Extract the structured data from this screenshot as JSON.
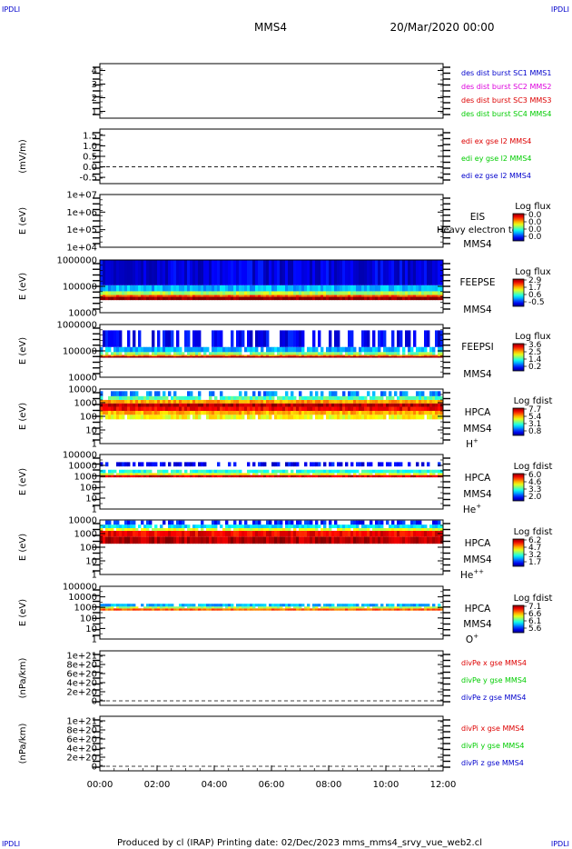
{
  "corner_labels": [
    "IPDLI",
    "IPDLI",
    "IPDLI",
    "IPDLI"
  ],
  "header": {
    "spacecraft": "MMS4",
    "datetime": "20/Mar/2020 00:00"
  },
  "footer": {
    "text": "Produced by cl (IRAP)   Printing date: 02/Dec/2023   mms_mms4_srvy_vue_web2.cl"
  },
  "colors": {
    "red": "#dd0000",
    "green": "#00cc00",
    "blue": "#0000cc",
    "magenta": "#dd00dd",
    "black": "#000000"
  },
  "chart_data": {
    "type": "heatmap",
    "x_ticks": [
      "00:00",
      "02:00",
      "04:00",
      "06:00",
      "08:00",
      "10:00",
      "12:00"
    ],
    "xlim": [
      0,
      12
    ],
    "panels": [
      {
        "id": "dist",
        "kind": "line",
        "ylabel": "",
        "ylim": [
          0.5,
          4.5
        ],
        "ticks": [
          {
            "v": 1,
            "t": "1"
          },
          {
            "v": 2,
            "t": "2"
          },
          {
            "v": 3,
            "t": "3"
          },
          {
            "v": 4,
            "t": "4"
          }
        ],
        "legend": [
          {
            "text": "des dist burst SC1 MMS1",
            "color": "#0000cc"
          },
          {
            "text": "des dist burst SC2 MMS2",
            "color": "#dd00dd"
          },
          {
            "text": "des dist burst SC3 MMS3",
            "color": "#dd0000"
          },
          {
            "text": "des dist burst SC4 MMS4",
            "color": "#00cc00"
          }
        ]
      },
      {
        "id": "edi",
        "kind": "line",
        "ylabel": "(mV/m)",
        "ylim": [
          -0.8,
          1.8
        ],
        "dashed_zero": true,
        "ticks": [
          {
            "v": 1.5,
            "t": "1.5"
          },
          {
            "v": 1.0,
            "t": "1.0"
          },
          {
            "v": 0.5,
            "t": "0.5"
          },
          {
            "v": 0.0,
            "t": "0.0"
          },
          {
            "v": -0.5,
            "t": "-0.5"
          }
        ],
        "legend": [
          {
            "text": "edi ex gse l2 MMS4",
            "color": "#dd0000"
          },
          {
            "text": "edi ey gse l2 MMS4",
            "color": "#00cc00"
          },
          {
            "text": "edi ez gse l2 MMS4",
            "color": "#0000cc"
          }
        ]
      },
      {
        "id": "eis",
        "kind": "spectrogram",
        "ylabel": "E (eV)",
        "log": true,
        "ylim": [
          10000,
          10000000
        ],
        "ticks": [
          {
            "v": 10000000,
            "t": "1e+07"
          },
          {
            "v": 1000000,
            "t": "1e+06"
          },
          {
            "v": 100000,
            "t": "1e+05"
          },
          {
            "v": 10000,
            "t": "1e+04"
          }
        ],
        "labels": [
          "EIS",
          "MMS4"
        ],
        "overlay": "Heavy electron to",
        "cb_title": "Log flux",
        "cb_values": [
          "0.0",
          "0.0",
          "0.0",
          "0.0"
        ],
        "bands": []
      },
      {
        "id": "feepse",
        "kind": "spectrogram",
        "ylabel": "E (eV)",
        "log": true,
        "ylim": [
          10000,
          1000000
        ],
        "ticks": [
          {
            "v": 1000000,
            "t": "1000000"
          },
          {
            "v": 100000,
            "t": "100000"
          },
          {
            "v": 10000,
            "t": "10000"
          }
        ],
        "labels": [
          "FEEPSE",
          "MMS4"
        ],
        "cb_title": "Log flux",
        "cb_values": [
          "2.9",
          "1.7",
          "0.6",
          "-0.5"
        ],
        "bands": [
          {
            "from": 30000,
            "to": 40000,
            "level": 1.0
          },
          {
            "from": 40000,
            "to": 47000,
            "level": 0.8
          },
          {
            "from": 47000,
            "to": 65000,
            "level": 0.55
          },
          {
            "from": 65000,
            "to": 110000,
            "level": 0.3
          },
          {
            "from": 110000,
            "to": 1000000,
            "level": 0.1
          }
        ],
        "sparse": false
      },
      {
        "id": "feepsi",
        "kind": "spectrogram",
        "ylabel": "E (eV)",
        "log": true,
        "ylim": [
          10000,
          1000000
        ],
        "ticks": [
          {
            "v": 1000000,
            "t": "1000000"
          },
          {
            "v": 100000,
            "t": "100000"
          },
          {
            "v": 10000,
            "t": "10000"
          }
        ],
        "labels": [
          "FEEPSI",
          "MMS4"
        ],
        "cb_title": "Log flux",
        "cb_values": [
          "3.6",
          "2.5",
          "1.4",
          "0.2"
        ],
        "bands": [
          {
            "from": 55000,
            "to": 62000,
            "level": 1.0
          },
          {
            "from": 62000,
            "to": 70000,
            "level": 0.75
          },
          {
            "from": 70000,
            "to": 90000,
            "level": 0.5
          },
          {
            "from": 90000,
            "to": 140000,
            "level": 0.3
          },
          {
            "from": 140000,
            "to": 600000,
            "level": 0.12
          }
        ],
        "sparse": true
      },
      {
        "id": "hpca_h",
        "kind": "spectrogram",
        "ylabel": "E (eV)",
        "log": true,
        "ylim": [
          1,
          10000
        ],
        "ticks": [
          {
            "v": 10000,
            "t": "10000"
          },
          {
            "v": 1000,
            "t": "1000"
          },
          {
            "v": 100,
            "t": "100"
          },
          {
            "v": 10,
            "t": "10"
          },
          {
            "v": 1,
            "t": "1"
          }
        ],
        "labels": [
          "HPCA",
          "MMS4"
        ],
        "species": "H",
        "species_sup": "+",
        "cb_title": "Log fdist",
        "cb_values": [
          "7.7",
          "5.4",
          "3.1",
          "0.8"
        ],
        "bands": [
          {
            "from": 60,
            "to": 130,
            "level": 0.62
          },
          {
            "from": 130,
            "to": 250,
            "level": 0.7
          },
          {
            "from": 250,
            "to": 500,
            "level": 0.88
          },
          {
            "from": 500,
            "to": 900,
            "level": 0.95
          },
          {
            "from": 900,
            "to": 1600,
            "level": 0.72
          },
          {
            "from": 1600,
            "to": 3000,
            "level": 0.45
          },
          {
            "from": 3000,
            "to": 7000,
            "level": 0.25
          }
        ],
        "sparse": true
      },
      {
        "id": "hpca_he",
        "kind": "spectrogram",
        "ylabel": "E (eV)",
        "log": true,
        "ylim": [
          1,
          100000
        ],
        "ticks": [
          {
            "v": 100000,
            "t": "100000"
          },
          {
            "v": 10000,
            "t": "10000"
          },
          {
            "v": 1000,
            "t": "1000"
          },
          {
            "v": 100,
            "t": "100"
          },
          {
            "v": 10,
            "t": "10"
          },
          {
            "v": 1,
            "t": "1"
          }
        ],
        "labels": [
          "HPCA",
          "MMS4"
        ],
        "species": "He",
        "species_sup": "+",
        "cb_title": "Log fdist",
        "cb_values": [
          "6.0",
          "4.6",
          "3.3",
          "2.0"
        ],
        "bands": [
          {
            "from": 800,
            "to": 1300,
            "level": 0.92
          },
          {
            "from": 1300,
            "to": 2000,
            "level": 0.6
          },
          {
            "from": 2000,
            "to": 4000,
            "level": 0.4
          },
          {
            "from": 8000,
            "to": 20000,
            "level": 0.12
          }
        ],
        "sparse": true
      },
      {
        "id": "hpca_hepp",
        "kind": "spectrogram",
        "ylabel": "E (eV)",
        "log": true,
        "ylim": [
          1,
          10000
        ],
        "ticks": [
          {
            "v": 10000,
            "t": "10000"
          },
          {
            "v": 1000,
            "t": "1000"
          },
          {
            "v": 100,
            "t": "100"
          },
          {
            "v": 10,
            "t": "10"
          },
          {
            "v": 1,
            "t": "1"
          }
        ],
        "labels": [
          "HPCA",
          "MMS4"
        ],
        "species": "He",
        "species_sup": "++",
        "cb_title": "Log fdist",
        "cb_values": [
          "6.2",
          "4.7",
          "3.2",
          "1.7"
        ],
        "bands": [
          {
            "from": 180,
            "to": 600,
            "level": 0.95
          },
          {
            "from": 600,
            "to": 1600,
            "level": 0.88
          },
          {
            "from": 1600,
            "to": 2500,
            "level": 0.6
          },
          {
            "from": 2500,
            "to": 4500,
            "level": 0.35
          },
          {
            "from": 4500,
            "to": 9000,
            "level": 0.15
          }
        ],
        "sparse": true
      },
      {
        "id": "hpca_o",
        "kind": "spectrogram",
        "ylabel": "E (eV)",
        "log": true,
        "ylim": [
          1,
          100000
        ],
        "ticks": [
          {
            "v": 100000,
            "t": "100000"
          },
          {
            "v": 10000,
            "t": "10000"
          },
          {
            "v": 1000,
            "t": "1000"
          },
          {
            "v": 100,
            "t": "100"
          },
          {
            "v": 10,
            "t": "10"
          },
          {
            "v": 1,
            "t": "1"
          }
        ],
        "labels": [
          "HPCA",
          "MMS4"
        ],
        "species": "O",
        "species_sup": "+",
        "cb_title": "Log fdist",
        "cb_values": [
          "7.1",
          "6.6",
          "6.1",
          "5.6"
        ],
        "bands": [
          {
            "from": 500,
            "to": 800,
            "level": 0.78
          },
          {
            "from": 800,
            "to": 1200,
            "level": 0.55
          },
          {
            "from": 1200,
            "to": 2200,
            "level": 0.3
          }
        ],
        "sparse": true
      },
      {
        "id": "divpe",
        "kind": "line",
        "ylabel": "(nPa/km)",
        "ylim": [
          -1e+20,
          1.1e+21
        ],
        "dashed_zero": true,
        "ticks": [
          {
            "v": 1e+21,
            "t": "1e+21"
          },
          {
            "v": 8e+20,
            "t": "8e+20"
          },
          {
            "v": 6e+20,
            "t": "6e+20"
          },
          {
            "v": 4e+20,
            "t": "4e+20"
          },
          {
            "v": 2e+20,
            "t": "2e+20"
          },
          {
            "v": 0,
            "t": "0"
          }
        ],
        "legend": [
          {
            "text": "divPe x gse MMS4",
            "color": "#dd0000"
          },
          {
            "text": "divPe y gse MMS4",
            "color": "#00cc00"
          },
          {
            "text": "divPe z gse MMS4",
            "color": "#0000cc"
          }
        ]
      },
      {
        "id": "divpi",
        "kind": "line",
        "ylabel": "(nPa/km)",
        "ylim": [
          -1e+20,
          1.1e+21
        ],
        "dashed_zero": true,
        "ticks": [
          {
            "v": 1e+21,
            "t": "1e+21"
          },
          {
            "v": 8e+20,
            "t": "8e+20"
          },
          {
            "v": 6e+20,
            "t": "6e+20"
          },
          {
            "v": 4e+20,
            "t": "4e+20"
          },
          {
            "v": 2e+20,
            "t": "2e+20"
          },
          {
            "v": 0,
            "t": "0"
          }
        ],
        "legend": [
          {
            "text": "divPi x gse MMS4",
            "color": "#dd0000"
          },
          {
            "text": "divPi y gse MMS4",
            "color": "#00cc00"
          },
          {
            "text": "divPi z gse MMS4",
            "color": "#0000cc"
          }
        ]
      }
    ]
  }
}
